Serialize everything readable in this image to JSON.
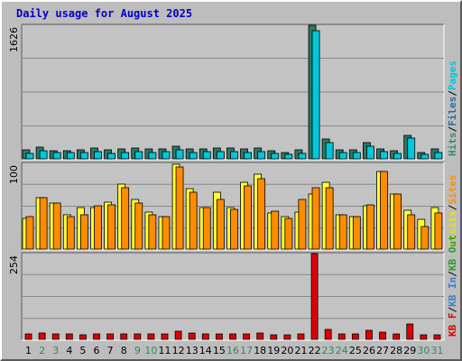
{
  "chart_data": {
    "type": "bar",
    "title": "Daily usage for August 2025",
    "colors": {
      "background": "#bdbdbd",
      "plot": "#c3c3c3",
      "title": "#0000cc",
      "weekday_label": "#000000",
      "weekend_label": "#2e8b57",
      "pages": "#00c8dc",
      "files": "#2b6aa0",
      "hits": "#3a8a70",
      "visits": "#f0e000",
      "sites": "#ff8c00",
      "kb_in": "#3a7bd5",
      "kb_out": "#2a9a2a",
      "kb": "#e00000"
    },
    "categories": [
      "1",
      "2",
      "3",
      "4",
      "5",
      "6",
      "7",
      "8",
      "9",
      "10",
      "11",
      "12",
      "13",
      "14",
      "15",
      "16",
      "17",
      "18",
      "19",
      "20",
      "21",
      "22",
      "23",
      "24",
      "25",
      "26",
      "27",
      "28",
      "29",
      "30",
      "31"
    ],
    "weekend_days": [
      "2",
      "3",
      "9",
      "10",
      "16",
      "17",
      "23",
      "24",
      "30",
      "31"
    ],
    "panels": [
      {
        "id": "hits",
        "ymax_label": "1626",
        "ymax": 1626,
        "legend": [
          {
            "text": "Hits",
            "color": "#3a8a70"
          },
          {
            "text": "/",
            "color": "#000000"
          },
          {
            "text": "Files",
            "color": "#2b6aa0"
          },
          {
            "text": "/",
            "color": "#000000"
          },
          {
            "text": "Pages",
            "color": "#00c8dc"
          }
        ],
        "series": [
          {
            "name": "Hits",
            "color": "#2a7a64",
            "values": [
              115,
              145,
              100,
              100,
              110,
              130,
              110,
              120,
              130,
              120,
              125,
              150,
              125,
              125,
              135,
              130,
              125,
              130,
              100,
              80,
              110,
              1626,
              240,
              115,
              110,
              200,
              120,
              100,
              290,
              80,
              120
            ]
          },
          {
            "name": "Pages",
            "color": "#00c8dc",
            "values": [
              70,
              100,
              80,
              80,
              80,
              90,
              70,
              80,
              90,
              80,
              90,
              110,
              80,
              90,
              90,
              90,
              80,
              90,
              70,
              60,
              70,
              1560,
              200,
              80,
              80,
              150,
              90,
              70,
              250,
              60,
              80
            ]
          }
        ]
      },
      {
        "id": "visits",
        "ymax_label": "100",
        "ymax": 100,
        "legend": [
          {
            "text": "Visits",
            "color": "#f0e000"
          },
          {
            "text": "/",
            "color": "#000000"
          },
          {
            "text": "Sites",
            "color": "#ff8c00"
          }
        ],
        "series": [
          {
            "name": "Visits",
            "color": "#ffff33",
            "values": [
              36,
              60,
              54,
              40,
              48,
              48,
              55,
              76,
              58,
              43,
              38,
              99,
              70,
              48,
              66,
              48,
              78,
              87,
              42,
              38,
              43,
              64,
              78,
              40,
              38,
              50,
              90,
              64,
              45,
              35,
              48
            ]
          },
          {
            "name": "Sites",
            "color": "#ff8c00",
            "values": [
              38,
              60,
              54,
              38,
              40,
              50,
              52,
              72,
              54,
              40,
              38,
              96,
              66,
              48,
              58,
              46,
              74,
              82,
              44,
              36,
              58,
              72,
              72,
              40,
              38,
              52,
              90,
              64,
              40,
              26,
              42
            ]
          }
        ]
      },
      {
        "id": "kbytes",
        "ymax_label": "254",
        "ymax": 254,
        "legend": [
          {
            "text": "KB F",
            "color": "#e00000"
          },
          {
            "text": "/",
            "color": "#000000"
          },
          {
            "text": "KB In",
            "color": "#3a7bd5"
          },
          {
            "text": "/",
            "color": "#000000"
          },
          {
            "text": "KB Out",
            "color": "#2a9a2a"
          }
        ],
        "series": [
          {
            "name": "KB F",
            "color": "#e00000",
            "values": [
              16,
              18,
              16,
              17,
              14,
              16,
              16,
              16,
              17,
              16,
              16,
              25,
              18,
              16,
              16,
              16,
              17,
              18,
              14,
              13,
              17,
              254,
              30,
              16,
              16,
              26,
              22,
              16,
              45,
              13,
              14
            ]
          }
        ]
      }
    ]
  }
}
